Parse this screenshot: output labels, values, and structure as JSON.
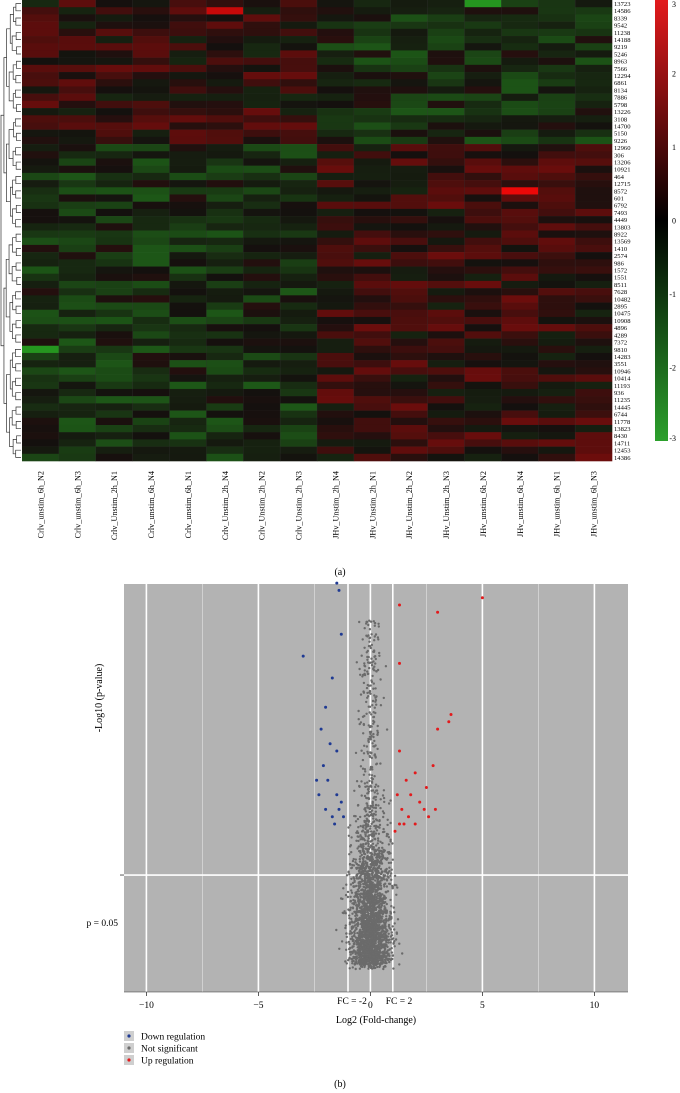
{
  "panel_a": {
    "caption": "(a)",
    "chart_data": {
      "type": "heatmap",
      "columns": [
        "Crlv_unstim_6h_N2",
        "Crlv_unstim_6h_N3",
        "Crlv_Unstim_2h_N1",
        "Crlv_unstim_6h_N4",
        "Crlv_unstim_6h_N1",
        "Crlv_Unstim_2h_N4",
        "Crlv_Unstim_2h_N2",
        "Crlv_Unstim_2h_N3",
        "JHv_Unstim_2h_N4",
        "JHv_Unstim_2h_N1",
        "JHv_Unstim_2h_N2",
        "JHv_Unstim_2h_N3",
        "JHv_unstim_6h_N2",
        "JHv_unstim_6h_N4",
        "JHv_unstim_6h_N1",
        "JHv_unstim_6h_N3"
      ],
      "rows": [
        "13723",
        "14586",
        "8339",
        "9542",
        "11238",
        "14188",
        "9219",
        "5246",
        "8963",
        "7566",
        "12294",
        "6861",
        "8134",
        "7886",
        "5798",
        "13226",
        "3108",
        "14700",
        "5150",
        "9226",
        "12960",
        "306",
        "13206",
        "10921",
        "464",
        "12715",
        "8572",
        "601",
        "6792",
        "7493",
        "4449",
        "13803",
        "8922",
        "13569",
        "1410",
        "2574",
        "986",
        "1572",
        "1551",
        "8511",
        "7628",
        "10482",
        "2895",
        "10475",
        "10908",
        "4896",
        "4289",
        "7372",
        "9810",
        "14283",
        "3551",
        "10946",
        "10414",
        "11193",
        "936",
        "11235",
        "14445",
        "6744",
        "11778",
        "13823",
        "8430",
        "14711",
        "12453",
        "14386"
      ],
      "color_scale": {
        "ticks": [
          "3",
          "2",
          "1",
          "0",
          "-1",
          "-2",
          "-3"
        ],
        "min": -3,
        "max": 3,
        "low_color": "#2ca02c",
        "mid_color": "#000000",
        "high_color": "#e31a1c"
      },
      "notable_cells": [
        {
          "row": "14586",
          "column": "Crlv_Unstim_2h_N4",
          "value": 2.5
        },
        {
          "row": "8572",
          "column": "JHv_unstim_6h_N4",
          "value": 3.0
        },
        {
          "row": "13723",
          "column": "JHv_unstim_6h_N2",
          "value": -2.5
        },
        {
          "row": "9810",
          "column": "Crlv_unstim_6h_N2",
          "value": -2.5
        }
      ]
    }
  },
  "panel_b": {
    "caption": "(b)",
    "chart_data": {
      "type": "scatter",
      "xlabel": "Log2 (Fold-change)",
      "ylabel": "-Log10 (p-value)",
      "xlim": [
        -11,
        11.5
      ],
      "xticks": [
        "-10",
        "-5",
        "0",
        "5",
        "10"
      ],
      "y_reference_label": "p = 0.05",
      "fc_labels": [
        "FC = -2",
        "FC = 2"
      ],
      "fc_lines": [
        -1,
        1
      ],
      "background": "#b3b3b3",
      "legend": [
        {
          "label": "Down regulation",
          "color": "#1f3a93"
        },
        {
          "label": "Not significant",
          "color": "#6b6b6b"
        },
        {
          "label": "Up regulation",
          "color": "#e31a1c"
        }
      ],
      "down_points": [
        [
          -3,
          4.3
        ],
        [
          -1.5,
          5.3
        ],
        [
          -1.4,
          5.2
        ],
        [
          -1.3,
          4.6
        ],
        [
          -1.7,
          4.0
        ],
        [
          -2.0,
          3.6
        ],
        [
          -2.2,
          3.3
        ],
        [
          -1.8,
          3.1
        ],
        [
          -1.5,
          3.0
        ],
        [
          -2.1,
          2.8
        ],
        [
          -1.9,
          2.6
        ],
        [
          -2.4,
          2.6
        ],
        [
          -2.3,
          2.4
        ],
        [
          -1.5,
          2.4
        ],
        [
          -1.3,
          2.3
        ],
        [
          -2.0,
          2.2
        ],
        [
          -1.7,
          2.1
        ],
        [
          -1.4,
          2.2
        ],
        [
          -1.2,
          2.1
        ],
        [
          -1.6,
          2.0
        ]
      ],
      "up_points": [
        [
          5.0,
          5.1
        ],
        [
          3.0,
          4.9
        ],
        [
          1.3,
          5.0
        ],
        [
          3.6,
          3.5
        ],
        [
          3.5,
          3.4
        ],
        [
          3.0,
          3.3
        ],
        [
          1.3,
          4.2
        ],
        [
          2.8,
          2.8
        ],
        [
          2.0,
          2.7
        ],
        [
          1.3,
          3.0
        ],
        [
          1.6,
          2.6
        ],
        [
          2.5,
          2.5
        ],
        [
          1.2,
          2.4
        ],
        [
          1.8,
          2.4
        ],
        [
          2.2,
          2.3
        ],
        [
          1.4,
          2.2
        ],
        [
          2.4,
          2.2
        ],
        [
          1.7,
          2.1
        ],
        [
          1.3,
          2.0
        ],
        [
          2.0,
          2.0
        ],
        [
          1.5,
          2.0
        ],
        [
          1.1,
          1.9
        ],
        [
          2.6,
          2.1
        ],
        [
          2.9,
          2.2
        ]
      ]
    }
  }
}
